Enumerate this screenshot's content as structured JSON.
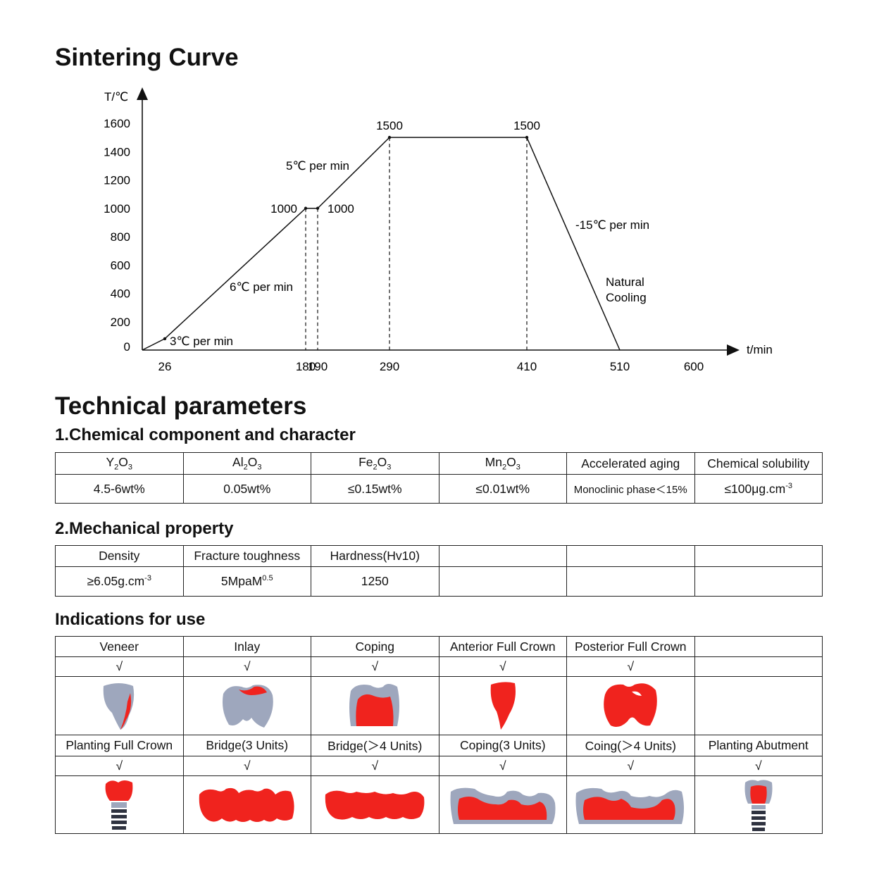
{
  "titles": {
    "sintering": "Sintering Curve",
    "technical": "Technical parameters",
    "chemical": "1.Chemical component and character",
    "mechanical": "2.Mechanical property",
    "indications": "Indications for use"
  },
  "chart_data": {
    "type": "line",
    "ylabel": "T/℃",
    "xlabel": "t/min",
    "x_ticks": [
      "26",
      "180",
      "190",
      "290",
      "410",
      "510",
      "600"
    ],
    "y_ticks": [
      "0",
      "200",
      "400",
      "600",
      "800",
      "1000",
      "1200",
      "1400",
      "1600"
    ],
    "xlim": [
      0,
      640
    ],
    "ylim": [
      0,
      1600
    ],
    "series": [
      {
        "points": [
          [
            0,
            0
          ],
          [
            26,
            80
          ],
          [
            180,
            1000
          ],
          [
            190,
            1000
          ],
          [
            290,
            1500
          ],
          [
            410,
            1500
          ],
          [
            510,
            0
          ]
        ]
      }
    ],
    "point_labels": [
      {
        "text": "1000",
        "x": 180,
        "y": 1000
      },
      {
        "text": "1000",
        "x": 190,
        "y": 1000
      },
      {
        "text": "1500",
        "x": 290,
        "y": 1500
      },
      {
        "text": "1500",
        "x": 410,
        "y": 1500
      }
    ],
    "annotations": [
      "3℃ per min",
      "6℃ per min",
      "5℃ per min",
      "-15℃ per min",
      "Natural",
      "Cooling"
    ]
  },
  "chemical_table": {
    "headers": [
      "Y2O3",
      "Al2O3",
      "Fe2O3",
      "Mn2O3",
      "Accelerated aging",
      "Chemical solubility"
    ],
    "values": [
      "4.5-6wt%",
      "0.05wt%",
      "≤0.15wt%",
      "≤0.01wt%",
      "Monoclinic phase＜15%",
      "≤100μg.cm-3"
    ]
  },
  "mechanical_table": {
    "headers": [
      "Density",
      "Fracture toughness",
      "Hardness(Hv10)",
      "",
      "",
      ""
    ],
    "values": [
      "≥6.05g.cm-3",
      "5MpaM0.5",
      "1250",
      "",
      "",
      ""
    ]
  },
  "indications_table": {
    "row1": [
      "Veneer",
      "Inlay",
      "Coping",
      "Anterior Full Crown",
      "Posterior Full Crown",
      ""
    ],
    "row2": [
      "Planting Full Crown",
      "Bridge(3 Units)",
      "Bridge(＞4 Units)",
      "Coping(3 Units)",
      "Coing(＞4 Units)",
      "Planting Abutment"
    ],
    "check": "√",
    "row1_checked": [
      true,
      true,
      true,
      true,
      true,
      false
    ],
    "row2_checked": [
      true,
      true,
      true,
      true,
      true,
      true
    ],
    "colors": {
      "zirconia": "#f0231e",
      "tooth": "#9ea7bd"
    }
  }
}
